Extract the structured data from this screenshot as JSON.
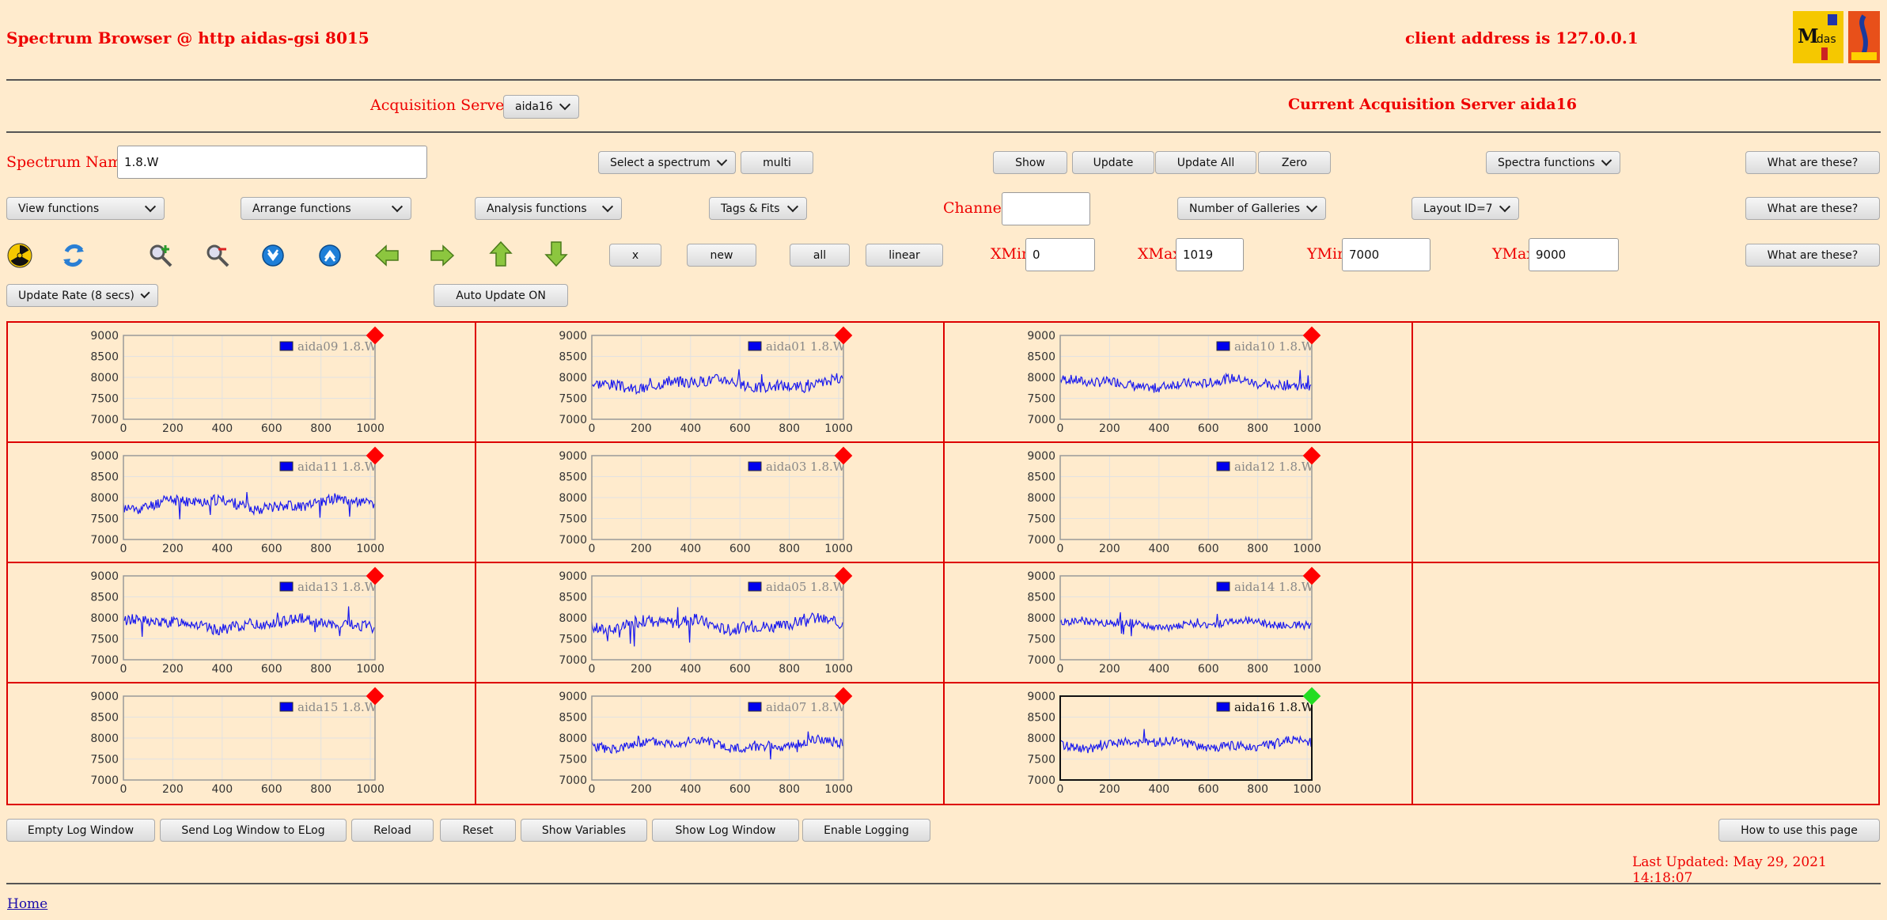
{
  "header": {
    "title": "Spectrum Browser @ http aidas-gsi 8015",
    "client_address": "client address is 127.0.0.1",
    "current_server": "Current Acquisition Server aida16"
  },
  "servers": {
    "label": "Acquisition Servers",
    "selected": "aida16"
  },
  "spectrum": {
    "name_label": "Spectrum Name:",
    "name_value": "1.8.W",
    "select_label": "Select a spectrum",
    "multi": "multi",
    "show": "Show",
    "update": "Update",
    "update_all": "Update All",
    "zero": "Zero",
    "spectra_functions": "Spectra functions",
    "help": "What are these?"
  },
  "functions": {
    "view": "View functions",
    "arrange": "Arrange functions",
    "analysis": "Analysis functions",
    "tags": "Tags & Fits",
    "channel_label": "Channel:",
    "channel_value": "",
    "galleries": "Number of Galleries",
    "layout": "Layout ID=7"
  },
  "tools": {
    "icons": [
      "radiation-icon",
      "refresh-icon",
      "zoom-in-icon",
      "zoom-out-icon",
      "blue-circle-down-icon",
      "blue-circle-up-icon",
      "arrow-left-icon",
      "arrow-right-icon",
      "arrow-up-icon",
      "arrow-down-icon"
    ],
    "x": "x",
    "new": "new",
    "all": "all",
    "linear": "linear",
    "xmin_label": "XMin",
    "xmin": "0",
    "xmax_label": "XMax",
    "xmax": "1019",
    "ymin_label": "YMin",
    "ymin": "7000",
    "ymax_label": "YMax",
    "ymax": "9000"
  },
  "rate": {
    "update_rate": "Update Rate (8 secs)",
    "auto_update": "Auto Update ON"
  },
  "axes": {
    "x_ticks": [
      "0",
      "200",
      "400",
      "600",
      "800",
      "1000"
    ],
    "y_ticks": [
      "9000",
      "8500",
      "8000",
      "7500",
      "7000"
    ]
  },
  "gallery": [
    {
      "name": "aida09 1.8.W",
      "has_data": false,
      "status_color": "#ff0000",
      "active": false
    },
    {
      "name": "aida01 1.8.W",
      "has_data": true,
      "amp": 1.0,
      "seed": 3,
      "status_color": "#ff0000",
      "active": false
    },
    {
      "name": "aida10 1.8.W",
      "has_data": true,
      "amp": 0.9,
      "seed": 7,
      "status_color": "#ff0000",
      "active": false
    },
    {
      "name": "aida11 1.8.W",
      "has_data": true,
      "amp": 1.0,
      "seed": 11,
      "status_color": "#ff0000",
      "active": false
    },
    {
      "name": "aida03 1.8.W",
      "has_data": false,
      "status_color": "#ff0000",
      "active": false
    },
    {
      "name": "aida12 1.8.W",
      "has_data": false,
      "status_color": "#ff0000",
      "active": false
    },
    {
      "name": "aida13 1.8.W",
      "has_data": true,
      "amp": 1.0,
      "seed": 13,
      "status_color": "#ff0000",
      "active": false
    },
    {
      "name": "aida05 1.8.W",
      "has_data": true,
      "amp": 1.1,
      "seed": 17,
      "status_color": "#ff0000",
      "active": false
    },
    {
      "name": "aida14 1.8.W",
      "has_data": true,
      "amp": 0.7,
      "seed": 19,
      "status_color": "#ff0000",
      "active": false
    },
    {
      "name": "aida15 1.8.W",
      "has_data": false,
      "status_color": "#ff0000",
      "active": false
    },
    {
      "name": "aida07 1.8.W",
      "has_data": true,
      "amp": 0.9,
      "seed": 23,
      "status_color": "#ff0000",
      "active": false
    },
    {
      "name": "aida16 1.8.W",
      "has_data": true,
      "amp": 0.8,
      "seed": 29,
      "status_color": "#22dd22",
      "active": true
    }
  ],
  "footer": {
    "empty_log": "Empty Log Window",
    "send_log": "Send Log Window to ELog",
    "reload": "Reload",
    "reset": "Reset",
    "show_vars": "Show Variables",
    "show_log": "Show Log Window",
    "enable_logging": "Enable Logging",
    "how_to": "How to use this page",
    "last_updated": "Last Updated: May 29, 2021 14:18:07",
    "home": "Home"
  },
  "colors": {
    "accent": "#ee0000",
    "trace": "#1a1aee",
    "background": "#ffebcd"
  }
}
